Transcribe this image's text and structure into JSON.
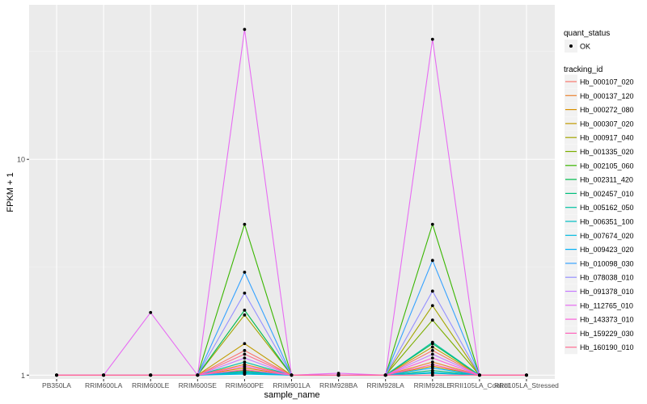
{
  "chart_data": {
    "type": "line",
    "xlabel": "sample_name",
    "ylabel": "FPKM + 1",
    "y_scale": "log10",
    "ylim": [
      0.96,
      52
    ],
    "y_ticks": [
      1,
      10
    ],
    "y_tick_labels": [
      "1",
      "10"
    ],
    "grid": true,
    "legend_position": "right",
    "categories": [
      "PB350LA",
      "RRIM600LA",
      "RRIM600LE",
      "RRIM600SE",
      "RRIM600PE",
      "RRIM901LA",
      "RRIM928BA",
      "RRIM928LA",
      "RRIM928LE",
      "RRII105LA_Control",
      "RRII105LA_Stressed"
    ],
    "point_legend": {
      "title": "quant_status",
      "items": [
        "OK"
      ]
    },
    "color_legend_title": "tracking_id",
    "series": [
      {
        "name": "Hb_000107_020",
        "color": "#F8766D",
        "values": [
          1,
          1,
          1,
          1,
          1.3,
          1,
          1,
          1,
          1.3,
          1,
          1
        ]
      },
      {
        "name": "Hb_000137_120",
        "color": "#EA8331",
        "values": [
          1,
          1,
          1,
          1,
          1.12,
          1,
          1,
          1,
          1.15,
          1,
          1
        ]
      },
      {
        "name": "Hb_000272_080",
        "color": "#D89000",
        "values": [
          1,
          1,
          1,
          1,
          1.08,
          1,
          1,
          1,
          1.1,
          1,
          1
        ]
      },
      {
        "name": "Hb_000307_020",
        "color": "#C09B00",
        "values": [
          1,
          1,
          1,
          1,
          1.4,
          1,
          1,
          1,
          1.35,
          1,
          1
        ]
      },
      {
        "name": "Hb_000917_040",
        "color": "#A3A500",
        "values": [
          1,
          1,
          1,
          1,
          1.9,
          1,
          1,
          1,
          2.1,
          1,
          1
        ]
      },
      {
        "name": "Hb_001335_020",
        "color": "#7CAE00",
        "values": [
          1,
          1,
          1,
          1,
          1.05,
          1,
          1,
          1,
          1.8,
          1,
          1
        ]
      },
      {
        "name": "Hb_002105_060",
        "color": "#39B600",
        "values": [
          1,
          1,
          1,
          1,
          5.0,
          1,
          1,
          1,
          5.0,
          1,
          1
        ]
      },
      {
        "name": "Hb_002311_420",
        "color": "#00BB4E",
        "values": [
          1,
          1,
          1,
          1,
          2.0,
          1,
          1,
          1,
          1.4,
          1,
          1
        ]
      },
      {
        "name": "Hb_002457_010",
        "color": "#00BF7D",
        "values": [
          1,
          1,
          1,
          1,
          1.03,
          1,
          1,
          1,
          1.05,
          1,
          1
        ]
      },
      {
        "name": "Hb_005162_050",
        "color": "#00C1A3",
        "values": [
          1,
          1,
          1,
          1,
          1.15,
          1,
          1,
          1,
          1.42,
          1,
          1
        ]
      },
      {
        "name": "Hb_006351_100",
        "color": "#00BFC4",
        "values": [
          1,
          1,
          1,
          1,
          1.02,
          1,
          1,
          1,
          1.02,
          1,
          1
        ]
      },
      {
        "name": "Hb_007674_020",
        "color": "#00BAE0",
        "values": [
          1,
          1,
          1,
          1,
          1.01,
          1,
          1,
          1,
          1.03,
          1,
          1
        ]
      },
      {
        "name": "Hb_009423_020",
        "color": "#00B0F6",
        "values": [
          1,
          1,
          1,
          1,
          1.04,
          1,
          1,
          1,
          1.08,
          1,
          1
        ]
      },
      {
        "name": "Hb_010098_030",
        "color": "#35A2FF",
        "values": [
          1,
          1,
          1,
          1,
          3.0,
          1,
          1,
          1,
          3.4,
          1,
          1
        ]
      },
      {
        "name": "Hb_078038_010",
        "color": "#9590FF",
        "values": [
          1,
          1,
          1,
          1,
          2.4,
          1,
          1,
          1,
          2.45,
          1,
          1
        ]
      },
      {
        "name": "Hb_091378_010",
        "color": "#C77CFF",
        "values": [
          1,
          1,
          1,
          1,
          1.2,
          1,
          1,
          1,
          1.25,
          1,
          1
        ]
      },
      {
        "name": "Hb_112765_010",
        "color": "#E76BF3",
        "values": [
          1,
          1,
          1.95,
          1,
          40.0,
          1,
          1.02,
          1,
          36.0,
          1,
          1
        ]
      },
      {
        "name": "Hb_143373_010",
        "color": "#FA62DB",
        "values": [
          1,
          1,
          1,
          1,
          1.1,
          1,
          1,
          1,
          1.2,
          1,
          1
        ]
      },
      {
        "name": "Hb_159229_030",
        "color": "#FF62BC",
        "values": [
          1,
          1,
          1,
          1,
          1.06,
          1,
          1,
          1,
          1.12,
          1,
          1
        ]
      },
      {
        "name": "Hb_160190_010",
        "color": "#FF6C91",
        "values": [
          1,
          1,
          1,
          1,
          1.25,
          1,
          1,
          1,
          1.0,
          1,
          1
        ]
      }
    ]
  }
}
